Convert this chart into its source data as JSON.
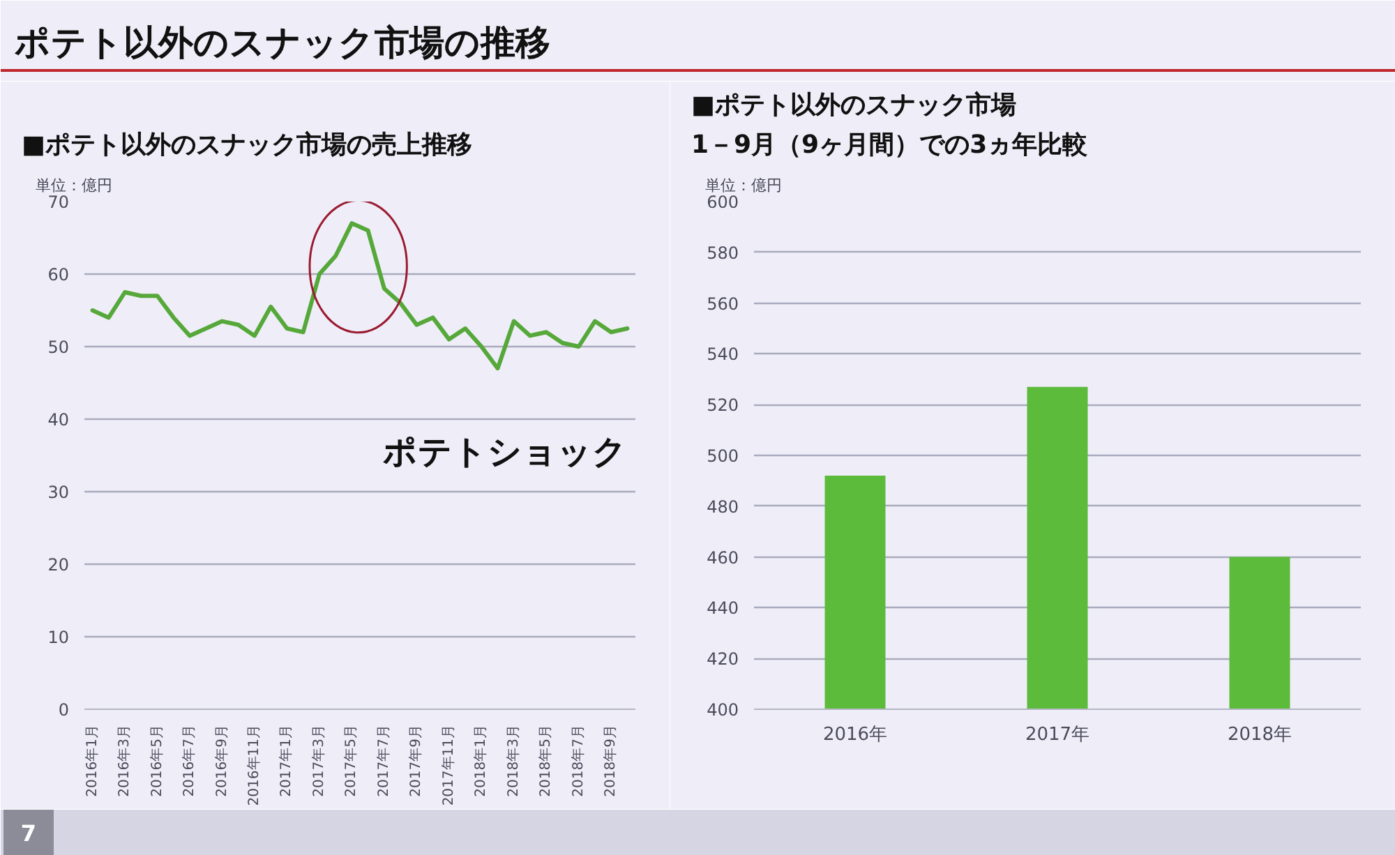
{
  "chart_data": [
    {
      "type": "line",
      "title": "ポテト以外のスナック市場の推移",
      "subtitle": "■ポテト以外のスナック市場の売上推移",
      "ylabel": "単位：億円",
      "categories": [
        "2016年1月",
        null,
        "2016年3月",
        null,
        "2016年5月",
        null,
        "2016年7月",
        null,
        "2016年9月",
        null,
        "2016年11月",
        null,
        "2017年1月",
        null,
        "2017年3月",
        null,
        "2017年5月",
        null,
        "2017年7月",
        null,
        "2017年9月",
        null,
        "2017年11月",
        null,
        "2018年1月",
        null,
        "2018年3月",
        null,
        "2018年5月",
        null,
        "2018年7月",
        null,
        "2018年9月",
        null
      ],
      "series": [
        {
          "color": "#56a83a",
          "values": [
            55,
            54,
            57.5,
            57,
            57,
            54,
            51.5,
            52.5,
            53.5,
            53,
            51.5,
            55.5,
            52.5,
            52,
            60,
            62.5,
            67,
            66,
            58,
            56,
            53,
            54,
            51,
            52.5,
            50,
            47,
            53.5,
            51.5,
            52,
            50.5,
            50,
            53.5,
            52,
            52.5
          ]
        }
      ],
      "ylim": [
        0,
        70
      ],
      "yticks": [
        0,
        10,
        20,
        30,
        40,
        50,
        60,
        70
      ],
      "grid": "y",
      "annotations": [
        "ポテトショック",
        "7"
      ]
    },
    {
      "type": "bar",
      "title": "■ポテト以外のスナック市場\n1－9月（9ヶ月間）での3ヵ年比較",
      "ylabel": "単位：億円",
      "categories": [
        "2016年",
        "2017年",
        "2018年"
      ],
      "series": [
        {
          "color": "#5dbb3c",
          "values": [
            492,
            527,
            460
          ]
        }
      ],
      "ylim": [
        400,
        600
      ],
      "yticks": [
        400,
        420,
        440,
        460,
        480,
        500,
        520,
        540,
        560,
        580,
        600
      ],
      "grid": "y"
    }
  ]
}
